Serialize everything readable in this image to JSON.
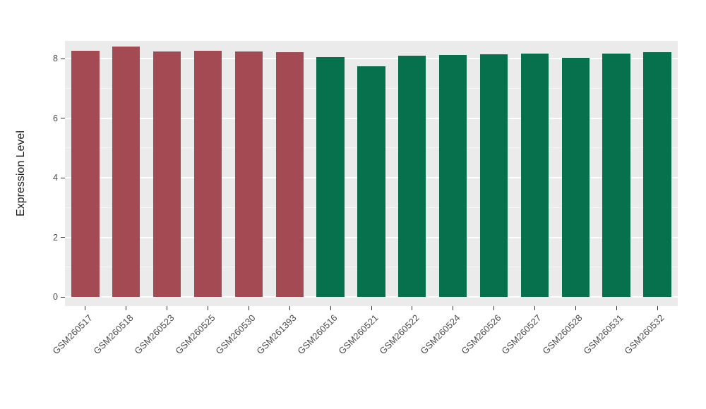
{
  "chart_data": {
    "type": "bar",
    "title": "",
    "xlabel": "",
    "ylabel": "Expression Level",
    "ylim": [
      0,
      8.6
    ],
    "yticks": [
      0,
      2,
      4,
      6,
      8
    ],
    "yticks_minor": [
      1,
      3,
      5,
      7
    ],
    "grid": "horizontal major and minor white gridlines on gray panel",
    "legend": "none",
    "panel_background": "#EBEBEB",
    "gridline_color": "#FFFFFF",
    "tick_label_color": "#4D4D4D",
    "group_colors": {
      "left-group": "#A44A52",
      "right-group": "#07714D"
    },
    "categories": [
      "GSM260517",
      "GSM260518",
      "GSM260523",
      "GSM260525",
      "GSM260530",
      "GSM261393",
      "GSM260516",
      "GSM260521",
      "GSM260522",
      "GSM260524",
      "GSM260526",
      "GSM260527",
      "GSM260528",
      "GSM260531",
      "GSM260532"
    ],
    "bars": [
      {
        "label": "GSM260517",
        "value": 8.27,
        "group": "left-group"
      },
      {
        "label": "GSM260518",
        "value": 8.4,
        "group": "left-group"
      },
      {
        "label": "GSM260523",
        "value": 8.25,
        "group": "left-group"
      },
      {
        "label": "GSM260525",
        "value": 8.28,
        "group": "left-group"
      },
      {
        "label": "GSM260530",
        "value": 8.24,
        "group": "left-group"
      },
      {
        "label": "GSM261393",
        "value": 8.23,
        "group": "left-group"
      },
      {
        "label": "GSM260516",
        "value": 8.05,
        "group": "right-group"
      },
      {
        "label": "GSM260521",
        "value": 7.74,
        "group": "right-group"
      },
      {
        "label": "GSM260522",
        "value": 8.1,
        "group": "right-group"
      },
      {
        "label": "GSM260524",
        "value": 8.12,
        "group": "right-group"
      },
      {
        "label": "GSM260526",
        "value": 8.14,
        "group": "right-group"
      },
      {
        "label": "GSM260527",
        "value": 8.18,
        "group": "right-group"
      },
      {
        "label": "GSM260528",
        "value": 8.02,
        "group": "right-group"
      },
      {
        "label": "GSM260531",
        "value": 8.17,
        "group": "right-group"
      },
      {
        "label": "GSM260532",
        "value": 8.21,
        "group": "right-group"
      }
    ]
  }
}
